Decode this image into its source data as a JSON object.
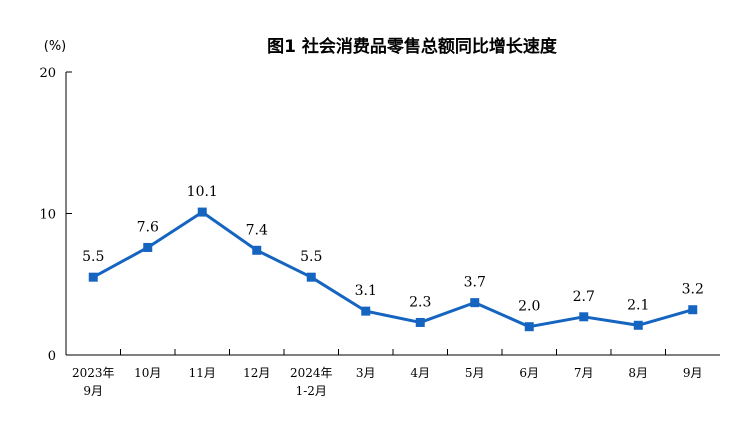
{
  "chart_data": {
    "type": "line",
    "title": "图1  社会消费品零售总额同比增长速度",
    "ylabel": "(%)",
    "xlabel": "",
    "ylim": [
      0,
      20
    ],
    "yticks": [
      "0",
      "10",
      "20"
    ],
    "grid": false,
    "categories": [
      [
        "2023年",
        "9月"
      ],
      [
        "10月"
      ],
      [
        "11月"
      ],
      [
        "12月"
      ],
      [
        "2024年",
        "1-2月"
      ],
      [
        "3月"
      ],
      [
        "4月"
      ],
      [
        "5月"
      ],
      [
        "6月"
      ],
      [
        "7月"
      ],
      [
        "8月"
      ],
      [
        "9月"
      ]
    ],
    "series": [
      {
        "values": [
          5.5,
          7.6,
          10.1,
          7.4,
          5.5,
          3.1,
          2.3,
          3.7,
          2.0,
          2.7,
          2.1,
          3.2
        ],
        "labels": [
          "5.5",
          "7.6",
          "10.1",
          "7.4",
          "5.5",
          "3.1",
          "2.3",
          "3.7",
          "2.0",
          "2.7",
          "2.1",
          "3.2"
        ],
        "color": "#1565c0"
      }
    ]
  }
}
